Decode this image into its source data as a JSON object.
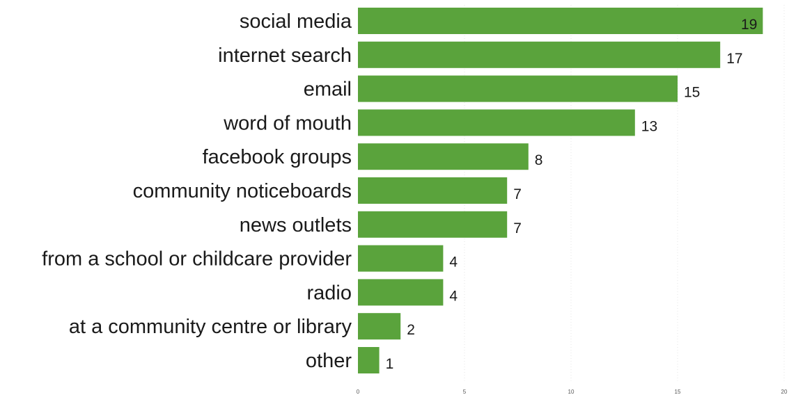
{
  "chart_data": {
    "type": "bar",
    "orientation": "horizontal",
    "categories": [
      "social media",
      "internet search",
      "email",
      "word of mouth",
      "facebook groups",
      "community noticeboards",
      "news outlets",
      "from a school or childcare provider",
      "radio",
      "at a community centre or library",
      "other"
    ],
    "values": [
      19,
      17,
      15,
      13,
      8,
      7,
      7,
      4,
      4,
      2,
      1
    ],
    "xlim": [
      0,
      20
    ],
    "xticks": [
      0,
      5,
      10,
      15,
      20
    ],
    "grid": true,
    "bar_color": "#5aa33c",
    "title": "",
    "xlabel": "",
    "ylabel": ""
  }
}
